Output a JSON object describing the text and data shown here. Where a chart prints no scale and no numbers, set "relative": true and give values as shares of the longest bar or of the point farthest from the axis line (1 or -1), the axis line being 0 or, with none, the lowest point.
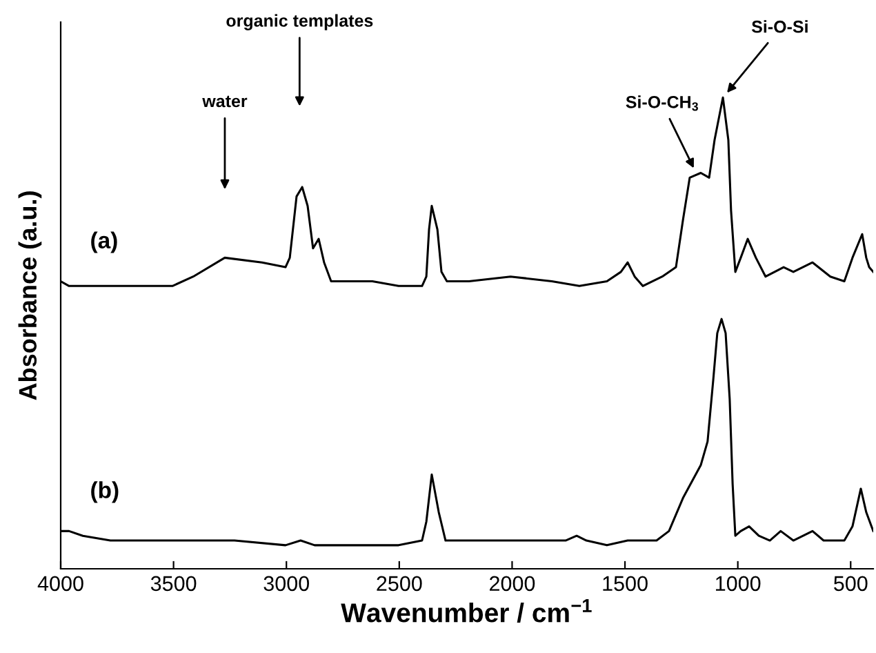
{
  "chart_data": {
    "type": "line",
    "relative": true,
    "xlabel": "Wavenumber / cm$^{−1}$",
    "ylabel": "Absorbance (a.u.)",
    "xlim": [
      4000,
      400
    ],
    "xticks": [
      4000,
      3500,
      3000,
      2500,
      2000,
      1500,
      1000,
      500
    ],
    "grid": false,
    "legend": false,
    "marker": "none",
    "line_style": "solid",
    "series": [
      {
        "name": "(a)",
        "color": "#000000",
        "x": [
          4000,
          3963,
          3902,
          3780,
          3658,
          3505,
          3413,
          3273,
          3108,
          3004,
          2985,
          2955,
          2930,
          2906,
          2882,
          2857,
          2833,
          2802,
          2741,
          2619,
          2503,
          2399,
          2380,
          2368,
          2356,
          2331,
          2313,
          2289,
          2191,
          2007,
          1824,
          1702,
          1580,
          1518,
          1488,
          1457,
          1421,
          1335,
          1274,
          1243,
          1213,
          1164,
          1127,
          1103,
          1066,
          1042,
          1030,
          1011,
          987,
          956,
          920,
          877,
          797,
          754,
          669,
          590,
          528,
          492,
          449,
          431,
          418,
          400
        ],
        "values": [
          0.61,
          0.6,
          0.6,
          0.6,
          0.6,
          0.6,
          0.62,
          0.66,
          0.65,
          0.64,
          0.66,
          0.79,
          0.81,
          0.77,
          0.68,
          0.7,
          0.65,
          0.61,
          0.61,
          0.61,
          0.6,
          0.6,
          0.62,
          0.72,
          0.77,
          0.72,
          0.63,
          0.61,
          0.61,
          0.62,
          0.61,
          0.6,
          0.61,
          0.63,
          0.65,
          0.62,
          0.6,
          0.62,
          0.64,
          0.74,
          0.83,
          0.84,
          0.83,
          0.91,
          1.0,
          0.91,
          0.76,
          0.63,
          0.66,
          0.7,
          0.66,
          0.62,
          0.64,
          0.63,
          0.65,
          0.62,
          0.61,
          0.66,
          0.71,
          0.66,
          0.64,
          0.63
        ]
      },
      {
        "name": "(b)",
        "color": "#000000",
        "x": [
          4000,
          3963,
          3902,
          3780,
          3658,
          3505,
          3322,
          3230,
          3004,
          2937,
          2875,
          2503,
          2399,
          2380,
          2356,
          2325,
          2295,
          2130,
          2007,
          1763,
          1714,
          1671,
          1580,
          1488,
          1445,
          1360,
          1305,
          1243,
          1164,
          1134,
          1109,
          1091,
          1072,
          1054,
          1036,
          1023,
          1011,
          987,
          950,
          907,
          858,
          810,
          754,
          669,
          620,
          528,
          492,
          455,
          431,
          400
        ],
        "values": [
          0.08,
          0.08,
          0.07,
          0.06,
          0.06,
          0.06,
          0.06,
          0.06,
          0.05,
          0.06,
          0.05,
          0.05,
          0.06,
          0.1,
          0.2,
          0.12,
          0.06,
          0.06,
          0.06,
          0.06,
          0.07,
          0.06,
          0.05,
          0.06,
          0.06,
          0.06,
          0.08,
          0.15,
          0.22,
          0.27,
          0.4,
          0.5,
          0.53,
          0.5,
          0.36,
          0.18,
          0.07,
          0.08,
          0.09,
          0.07,
          0.06,
          0.08,
          0.06,
          0.08,
          0.06,
          0.06,
          0.09,
          0.17,
          0.12,
          0.08
        ]
      }
    ],
    "annotations": [
      "water",
      "organic templates",
      {
        "text": "Si-O-CH$_{3}$",
        "x": 1195,
        "y": 0.85
      },
      {
        "text": "Si-O-Si",
        "x": 1048,
        "y": 1.01
      }
    ]
  }
}
